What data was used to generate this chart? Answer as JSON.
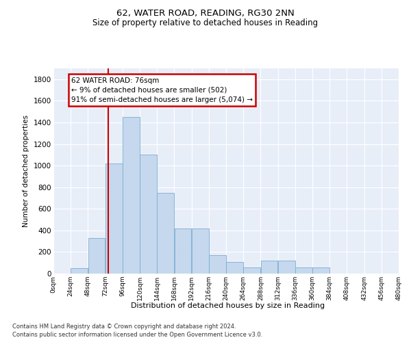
{
  "title1": "62, WATER ROAD, READING, RG30 2NN",
  "title2": "Size of property relative to detached houses in Reading",
  "xlabel": "Distribution of detached houses by size in Reading",
  "ylabel": "Number of detached properties",
  "bar_color": "#c5d8ed",
  "bar_edge_color": "#7aadd4",
  "vline_color": "#cc0000",
  "vline_x": 76,
  "bin_width": 24,
  "bins": [
    0,
    24,
    48,
    72,
    96,
    120,
    144,
    168,
    192,
    216,
    240,
    264,
    288,
    312,
    336,
    360,
    384,
    408,
    432,
    456,
    480
  ],
  "bar_heights": [
    0,
    50,
    330,
    1020,
    1450,
    1100,
    750,
    420,
    420,
    170,
    110,
    60,
    120,
    120,
    60,
    60,
    0,
    0,
    0,
    0
  ],
  "ylim": [
    0,
    1900
  ],
  "yticks": [
    0,
    200,
    400,
    600,
    800,
    1000,
    1200,
    1400,
    1600,
    1800
  ],
  "annotation_text": "62 WATER ROAD: 76sqm\n← 9% of detached houses are smaller (502)\n91% of semi-detached houses are larger (5,074) →",
  "footnote1": "Contains HM Land Registry data © Crown copyright and database right 2024.",
  "footnote2": "Contains public sector information licensed under the Open Government Licence v3.0.",
  "bg_color": "#e8eef8"
}
